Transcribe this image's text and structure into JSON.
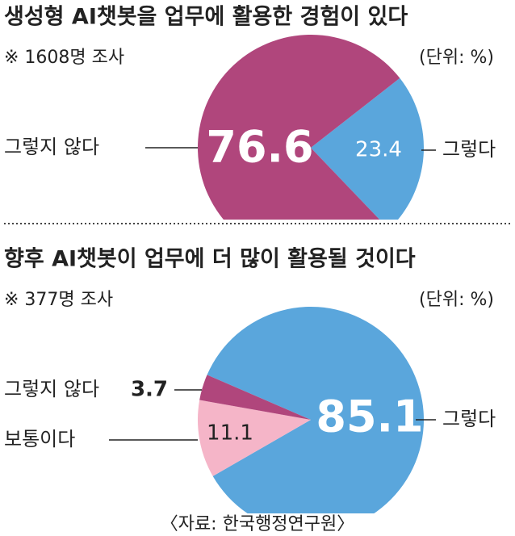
{
  "chart_data": [
    {
      "type": "pie",
      "title": "생성형 AI챗봇을 업무에 활용한 경험이 있다",
      "subtitle": "※ 1608명 조사",
      "unit": "(단위: %)",
      "categories": [
        "그렇다",
        "그렇지 않다"
      ],
      "values": [
        23.4,
        76.6
      ],
      "colors": [
        "#5aa6dc",
        "#b0467c"
      ]
    },
    {
      "type": "pie",
      "title": "향후 AI챗봇이 업무에 더 많이 활용될 것이다",
      "subtitle": "※ 377명 조사",
      "unit": "(단위: %)",
      "categories": [
        "그렇다",
        "보통이다",
        "그렇지 않다"
      ],
      "values": [
        85.1,
        11.1,
        3.7
      ],
      "colors": [
        "#5aa6dc",
        "#f5b5c8",
        "#b0467c"
      ]
    }
  ],
  "source": "〈자료: 한국행정연구원〉"
}
